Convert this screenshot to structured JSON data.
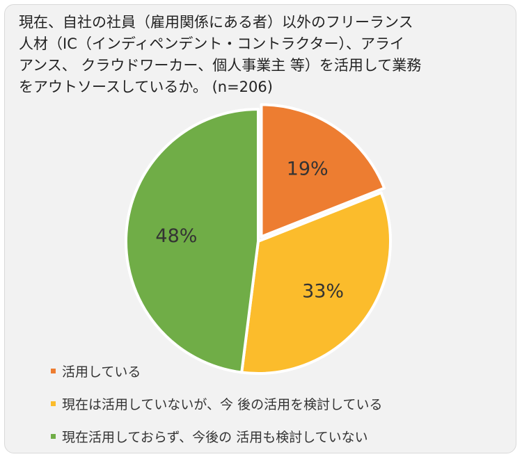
{
  "chart_data": {
    "type": "pie",
    "title_lines": [
      "現在、自社の社員（雇用関係にある者）以外のフリーランス",
      "人材（IC（インディペンデント・コントラクター）、アライ",
      "アンス、 クラウドワーカー、個人事業主 等）を活用して業務",
      "をアウトソースしているか。 (n=206)"
    ],
    "slices": [
      {
        "label": "活用している",
        "value": 19,
        "value_label": "19%",
        "color": "#ed7d31"
      },
      {
        "label": "現在は活用していないが、今 後の活用を検討している",
        "value": 33,
        "value_label": "33%",
        "color": "#fbbc2c"
      },
      {
        "label": "現在活用しておらず、今後の 活用も検討していない",
        "value": 48,
        "value_label": "48%",
        "color": "#70ad47"
      }
    ],
    "start_angle": "12 o'clock",
    "direction": "clockwise",
    "legend_position": "bottom-left"
  }
}
